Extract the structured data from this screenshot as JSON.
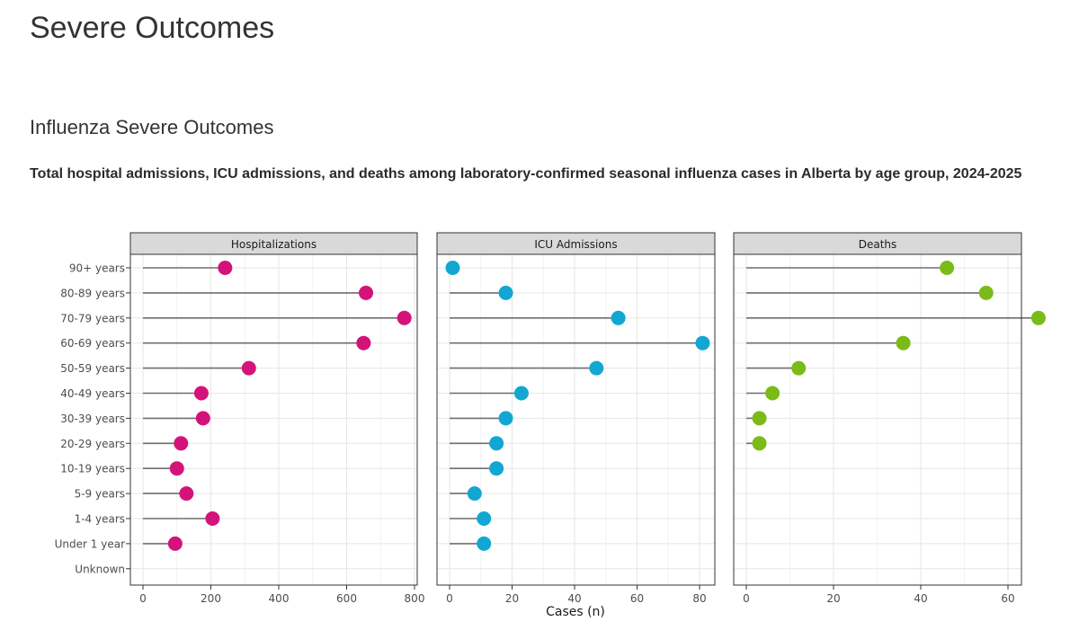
{
  "page": {
    "title": "Severe Outcomes",
    "section_title": "Influenza Severe Outcomes",
    "chart_title": "Total hospital admissions, ICU admissions, and deaths among laboratory-confirmed seasonal influenza cases in Alberta by age group, 2024-2025"
  },
  "chart_data": {
    "type": "lollipop",
    "xlabel": "Cases (n)",
    "categories": [
      "90+ years",
      "80-89 years",
      "70-79 years",
      "60-69 years",
      "50-59 years",
      "40-49 years",
      "30-39 years",
      "20-29 years",
      "10-19 years",
      "5-9 years",
      "1-4 years",
      "Under 1 year",
      "Unknown"
    ],
    "panels": [
      {
        "name": "Hospitalizations",
        "color": "#d4137a",
        "xlim": [
          0,
          800
        ],
        "ticks": [
          0,
          200,
          400,
          600,
          800
        ],
        "values": [
          242,
          657,
          770,
          650,
          312,
          172,
          177,
          112,
          100,
          128,
          205,
          95,
          null
        ]
      },
      {
        "name": "ICU Admissions",
        "color": "#12a7d3",
        "xlim": [
          0,
          80
        ],
        "ticks": [
          0,
          20,
          40,
          60,
          80
        ],
        "values": [
          1,
          18,
          54,
          81,
          47,
          23,
          18,
          15,
          15,
          8,
          11,
          11,
          null
        ]
      },
      {
        "name": "Deaths",
        "color": "#7bbb17",
        "xlim": [
          0,
          60
        ],
        "ticks": [
          0,
          20,
          40,
          60
        ],
        "values": [
          46,
          55,
          67,
          36,
          12,
          6,
          3,
          3,
          null,
          null,
          null,
          null,
          null
        ]
      }
    ]
  }
}
